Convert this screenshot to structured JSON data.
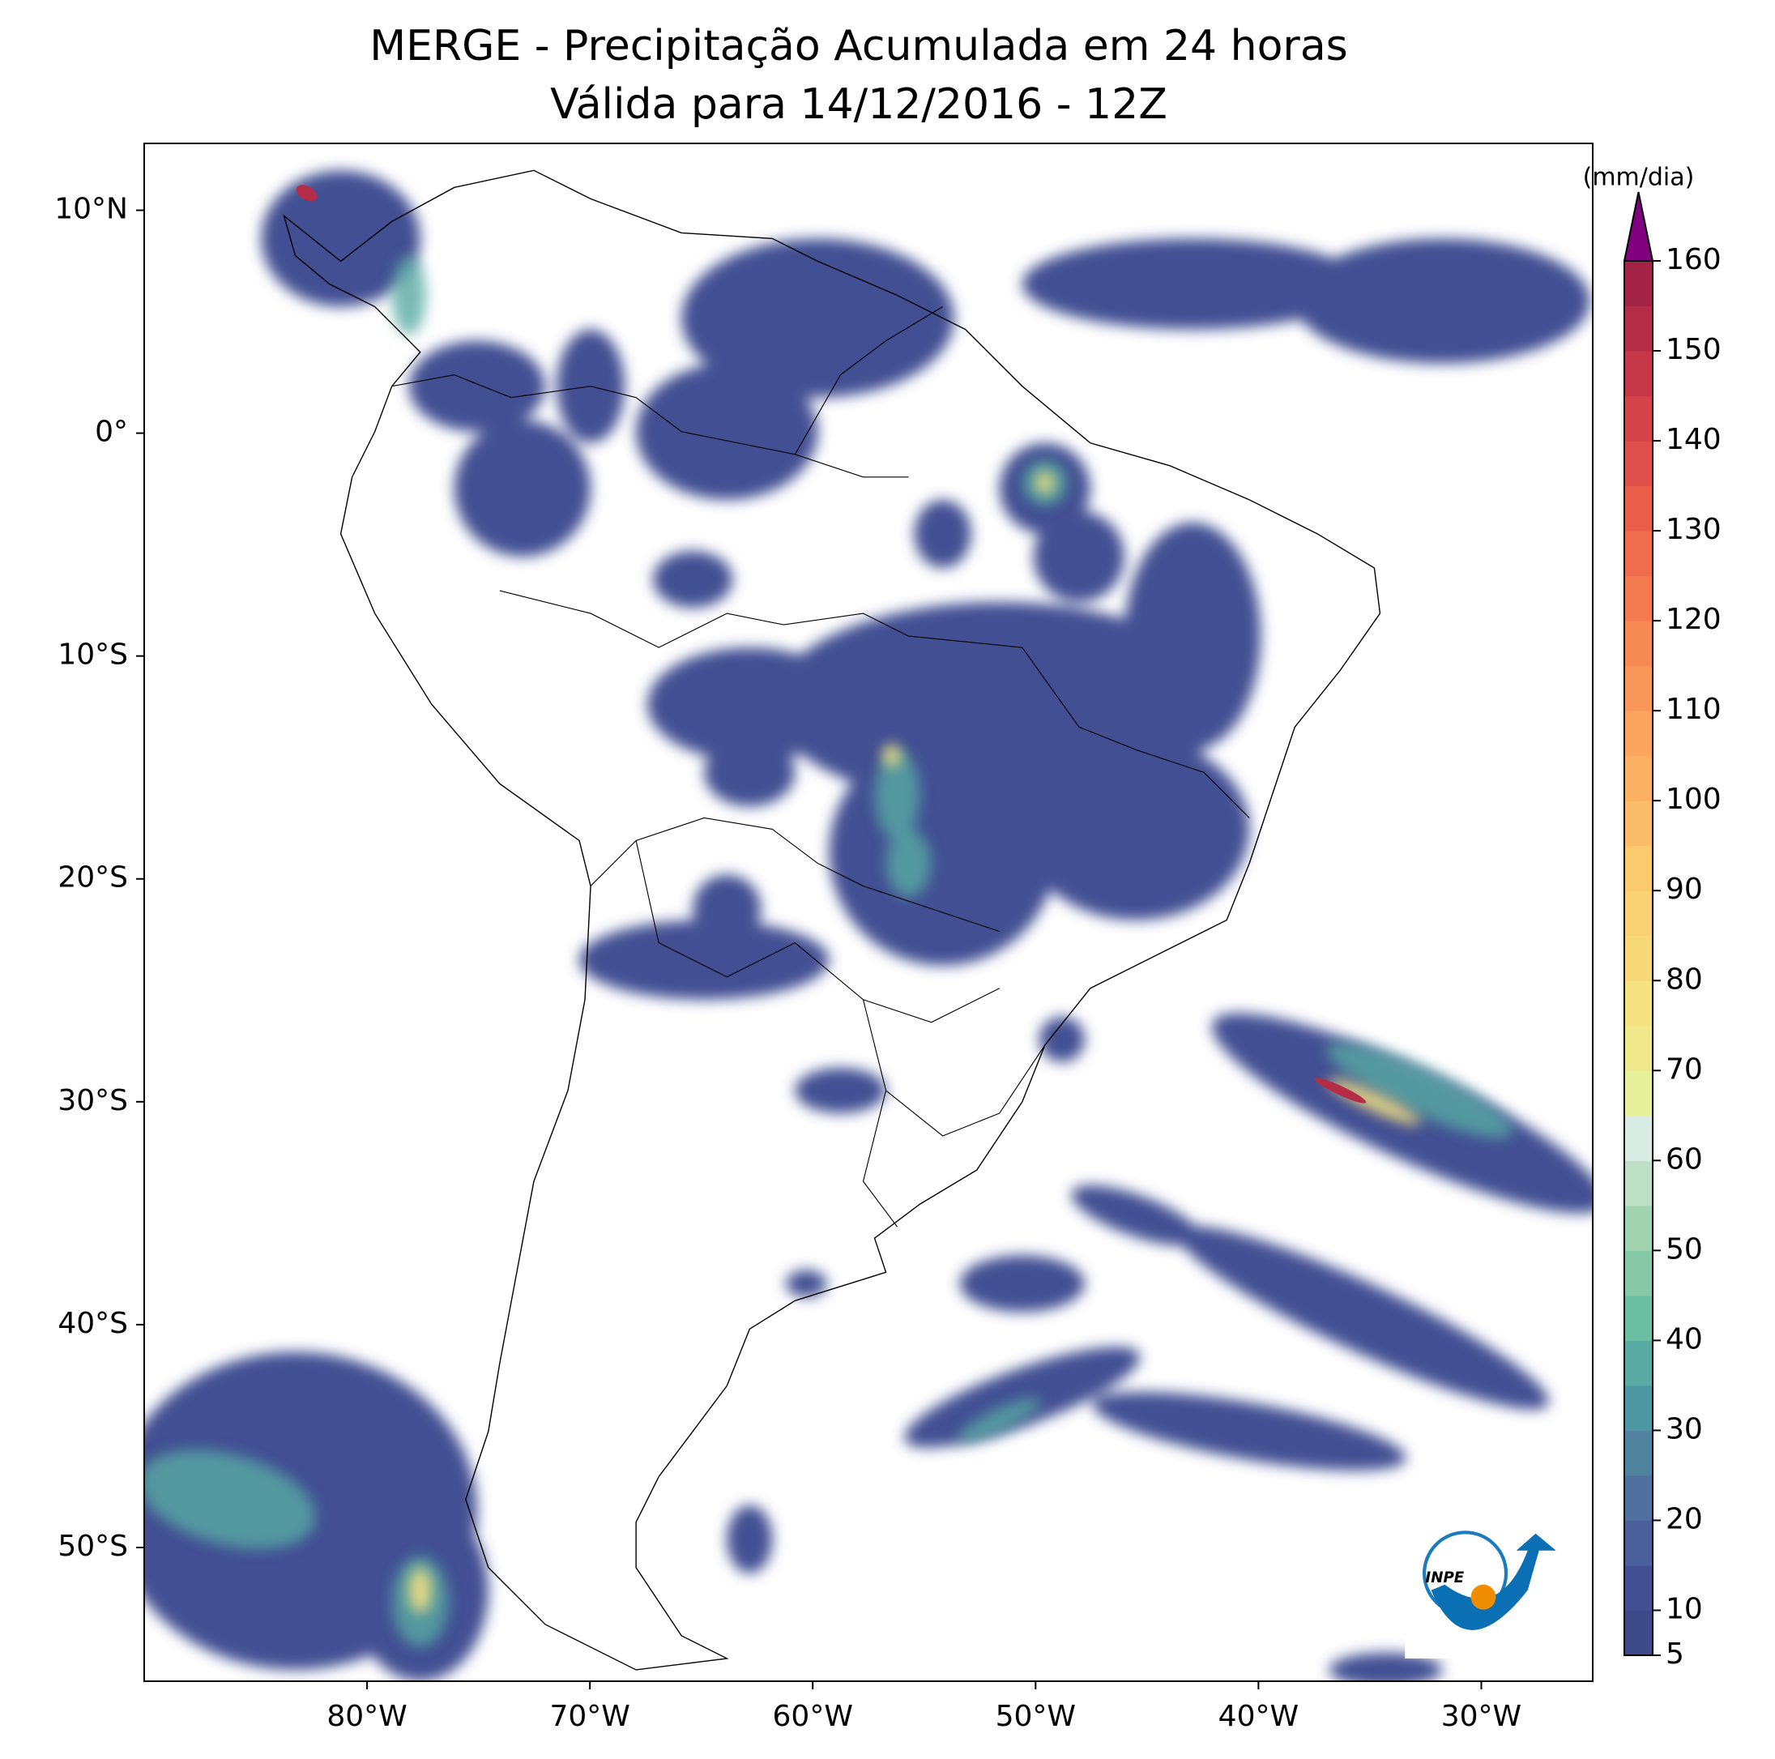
{
  "chart_data": {
    "type": "map",
    "title": "MERGE - Precipitação Acumulada em 24 horas",
    "subtitle": "Válida para 14/12/2016 - 12Z",
    "xlim": [
      -90,
      -25
    ],
    "ylim": [
      -56,
      13
    ],
    "xticks": [
      {
        "value": -80,
        "label": "80°W"
      },
      {
        "value": -70,
        "label": "70°W"
      },
      {
        "value": -60,
        "label": "60°W"
      },
      {
        "value": -50,
        "label": "50°W"
      },
      {
        "value": -40,
        "label": "40°W"
      },
      {
        "value": -30,
        "label": "30°W"
      }
    ],
    "yticks": [
      {
        "value": 10,
        "label": "10°N"
      },
      {
        "value": 0,
        "label": "0°"
      },
      {
        "value": -10,
        "label": "10°S"
      },
      {
        "value": -20,
        "label": "20°S"
      },
      {
        "value": -30,
        "label": "30°S"
      },
      {
        "value": -40,
        "label": "40°S"
      },
      {
        "value": -50,
        "label": "50°S"
      }
    ],
    "colorbar": {
      "label": "(mm/dia)",
      "vlim": [
        5,
        160
      ],
      "ticks": [
        5,
        10,
        20,
        30,
        40,
        50,
        60,
        70,
        80,
        90,
        100,
        110,
        120,
        130,
        140,
        150,
        160
      ],
      "colors": [
        "#3f4a8a",
        "#434f93",
        "#4a5f9c",
        "#50709f",
        "#4f83a0",
        "#4d97a3",
        "#59aaa3",
        "#6cbea3",
        "#85c9a7",
        "#a0d4b0",
        "#bde0c4",
        "#d9ece3",
        "#e7f09a",
        "#efe98c",
        "#f4e280",
        "#f7d97a",
        "#fad275",
        "#fbc96e",
        "#fcbd6a",
        "#fbb064",
        "#fba55f",
        "#f9965a",
        "#f78955",
        "#f47a50",
        "#ef6c4c",
        "#e85e4b",
        "#de5049",
        "#d44448",
        "#c63847",
        "#b52c47",
        "#a32346"
      ],
      "extend_color": "#800080"
    },
    "logo_text": "INPE"
  }
}
